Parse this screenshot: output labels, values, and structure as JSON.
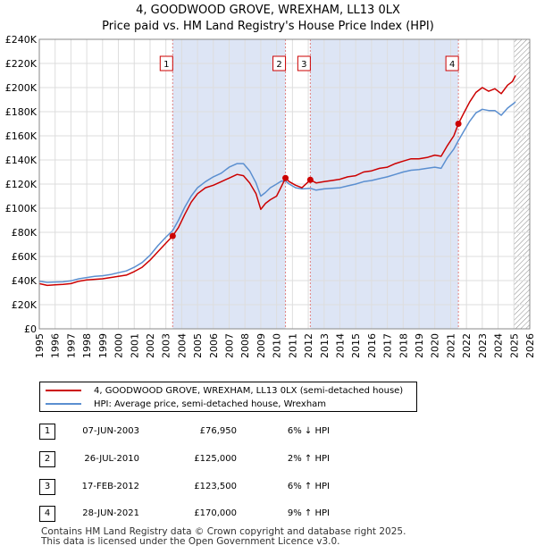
{
  "title": "4, GOODWOOD GROVE, WREXHAM, LL13 0LX",
  "subtitle": "Price paid vs. HM Land Registry's House Price Index (HPI)",
  "chart_data": {
    "type": "line",
    "title": "4, GOODWOOD GROVE, WREXHAM, LL13 0LX",
    "subtitle": "Price paid vs. HM Land Registry's House Price Index (HPI)",
    "xlim": [
      1995,
      2026
    ],
    "ylim": [
      0,
      240000
    ],
    "x_ticks": [
      1995,
      1996,
      1997,
      1998,
      1999,
      2000,
      2001,
      2002,
      2003,
      2004,
      2005,
      2006,
      2007,
      2008,
      2009,
      2010,
      2011,
      2012,
      2013,
      2014,
      2015,
      2016,
      2017,
      2018,
      2019,
      2020,
      2021,
      2022,
      2023,
      2024,
      2025,
      2026
    ],
    "y_ticks": [
      {
        "value": 0,
        "label": "£0"
      },
      {
        "value": 20000,
        "label": "£20K"
      },
      {
        "value": 40000,
        "label": "£40K"
      },
      {
        "value": 60000,
        "label": "£60K"
      },
      {
        "value": 80000,
        "label": "£80K"
      },
      {
        "value": 100000,
        "label": "£100K"
      },
      {
        "value": 120000,
        "label": "£120K"
      },
      {
        "value": 140000,
        "label": "£140K"
      },
      {
        "value": 160000,
        "label": "£160K"
      },
      {
        "value": 180000,
        "label": "£180K"
      },
      {
        "value": 200000,
        "label": "£200K"
      },
      {
        "value": 220000,
        "label": "£220K"
      },
      {
        "value": 240000,
        "label": "£240K"
      }
    ],
    "shaded_periods": [
      {
        "from": 2003.43,
        "to": 2010.56
      },
      {
        "from": 2012.13,
        "to": 2021.49
      }
    ],
    "future_hatch_from": 2025.0,
    "series": [
      {
        "name": "4, GOODWOOD GROVE, WREXHAM, LL13 0LX (semi-detached house)",
        "color": "#cc0000",
        "points": [
          [
            1995.0,
            37500
          ],
          [
            1995.5,
            36000
          ],
          [
            1996.0,
            36500
          ],
          [
            1996.5,
            36800
          ],
          [
            1997.0,
            37500
          ],
          [
            1997.5,
            39500
          ],
          [
            1998.0,
            40500
          ],
          [
            1998.5,
            41000
          ],
          [
            1999.0,
            41500
          ],
          [
            1999.5,
            42500
          ],
          [
            2000.0,
            43500
          ],
          [
            2000.5,
            44500
          ],
          [
            2001.0,
            47500
          ],
          [
            2001.5,
            51000
          ],
          [
            2002.0,
            57000
          ],
          [
            2002.5,
            64000
          ],
          [
            2003.0,
            71000
          ],
          [
            2003.43,
            76950
          ],
          [
            2003.8,
            84000
          ],
          [
            2004.2,
            95000
          ],
          [
            2004.6,
            105000
          ],
          [
            2005.0,
            112000
          ],
          [
            2005.5,
            117000
          ],
          [
            2006.0,
            119000
          ],
          [
            2006.5,
            122000
          ],
          [
            2007.0,
            125000
          ],
          [
            2007.5,
            128000
          ],
          [
            2007.9,
            127000
          ],
          [
            2008.3,
            121000
          ],
          [
            2008.7,
            112000
          ],
          [
            2009.0,
            99000
          ],
          [
            2009.3,
            104000
          ],
          [
            2009.6,
            107000
          ],
          [
            2010.0,
            110000
          ],
          [
            2010.3,
            118000
          ],
          [
            2010.56,
            125000
          ],
          [
            2010.8,
            122000
          ],
          [
            2011.2,
            119000
          ],
          [
            2011.6,
            117000
          ],
          [
            2012.13,
            123500
          ],
          [
            2012.5,
            121000
          ],
          [
            2013.0,
            122000
          ],
          [
            2013.5,
            123000
          ],
          [
            2014.0,
            124000
          ],
          [
            2014.5,
            126000
          ],
          [
            2015.0,
            127000
          ],
          [
            2015.5,
            130000
          ],
          [
            2016.0,
            131000
          ],
          [
            2016.5,
            133000
          ],
          [
            2017.0,
            134000
          ],
          [
            2017.5,
            137000
          ],
          [
            2018.0,
            139000
          ],
          [
            2018.5,
            141000
          ],
          [
            2019.0,
            141000
          ],
          [
            2019.5,
            142000
          ],
          [
            2020.0,
            144000
          ],
          [
            2020.4,
            143000
          ],
          [
            2020.8,
            152000
          ],
          [
            2021.2,
            160000
          ],
          [
            2021.49,
            170000
          ],
          [
            2021.8,
            178000
          ],
          [
            2022.2,
            188000
          ],
          [
            2022.6,
            196000
          ],
          [
            2023.0,
            200000
          ],
          [
            2023.4,
            197000
          ],
          [
            2023.8,
            199000
          ],
          [
            2024.2,
            195000
          ],
          [
            2024.6,
            202000
          ],
          [
            2024.9,
            205000
          ],
          [
            2025.1,
            210000
          ]
        ]
      },
      {
        "name": "HPI: Average price, semi-detached house, Wrexham",
        "color": "#5b8fd0",
        "points": [
          [
            1995.0,
            39500
          ],
          [
            1995.5,
            38500
          ],
          [
            1996.0,
            38800
          ],
          [
            1996.5,
            39000
          ],
          [
            1997.0,
            39800
          ],
          [
            1997.5,
            41500
          ],
          [
            1998.0,
            42500
          ],
          [
            1998.5,
            43500
          ],
          [
            1999.0,
            44000
          ],
          [
            1999.5,
            45000
          ],
          [
            2000.0,
            46500
          ],
          [
            2000.5,
            48000
          ],
          [
            2001.0,
            51000
          ],
          [
            2001.5,
            55000
          ],
          [
            2002.0,
            61000
          ],
          [
            2002.5,
            69000
          ],
          [
            2003.0,
            76000
          ],
          [
            2003.43,
            81500
          ],
          [
            2003.8,
            90000
          ],
          [
            2004.2,
            101000
          ],
          [
            2004.6,
            110000
          ],
          [
            2005.0,
            117000
          ],
          [
            2005.5,
            122000
          ],
          [
            2006.0,
            126000
          ],
          [
            2006.5,
            129000
          ],
          [
            2007.0,
            134000
          ],
          [
            2007.5,
            137000
          ],
          [
            2007.9,
            137000
          ],
          [
            2008.3,
            131000
          ],
          [
            2008.7,
            121000
          ],
          [
            2009.0,
            110000
          ],
          [
            2009.3,
            113000
          ],
          [
            2009.6,
            117000
          ],
          [
            2010.0,
            120000
          ],
          [
            2010.3,
            122500
          ],
          [
            2010.56,
            122500
          ],
          [
            2010.8,
            120000
          ],
          [
            2011.2,
            117000
          ],
          [
            2011.6,
            116000
          ],
          [
            2012.13,
            116500
          ],
          [
            2012.5,
            115000
          ],
          [
            2013.0,
            116000
          ],
          [
            2013.5,
            116500
          ],
          [
            2014.0,
            117000
          ],
          [
            2014.5,
            118500
          ],
          [
            2015.0,
            120000
          ],
          [
            2015.5,
            122000
          ],
          [
            2016.0,
            123000
          ],
          [
            2016.5,
            124500
          ],
          [
            2017.0,
            126000
          ],
          [
            2017.5,
            128000
          ],
          [
            2018.0,
            130000
          ],
          [
            2018.5,
            131500
          ],
          [
            2019.0,
            132000
          ],
          [
            2019.5,
            133000
          ],
          [
            2020.0,
            134000
          ],
          [
            2020.4,
            133000
          ],
          [
            2020.8,
            142000
          ],
          [
            2021.2,
            149000
          ],
          [
            2021.49,
            156000
          ],
          [
            2021.8,
            163000
          ],
          [
            2022.2,
            172000
          ],
          [
            2022.6,
            179000
          ],
          [
            2023.0,
            182000
          ],
          [
            2023.4,
            181000
          ],
          [
            2023.8,
            181000
          ],
          [
            2024.2,
            177000
          ],
          [
            2024.6,
            183000
          ],
          [
            2024.9,
            186000
          ],
          [
            2025.1,
            188000
          ]
        ]
      }
    ],
    "transactions": [
      {
        "num": "1",
        "x": 2003.43,
        "value": 76950
      },
      {
        "num": "2",
        "x": 2010.56,
        "value": 125000
      },
      {
        "num": "3",
        "x": 2012.13,
        "value": 123500
      },
      {
        "num": "4",
        "x": 2021.49,
        "value": 170000
      }
    ]
  },
  "legend": {
    "property_label": "4, GOODWOOD GROVE, WREXHAM, LL13 0LX (semi-detached house)",
    "hpi_label": "HPI: Average price, semi-detached house, Wrexham",
    "property_color": "#cc0000",
    "hpi_color": "#5b8fd0"
  },
  "transactions_table": [
    {
      "num": "1",
      "date": "07-JUN-2003",
      "price": "£76,950",
      "hpi": "6% ↓ HPI"
    },
    {
      "num": "2",
      "date": "26-JUL-2010",
      "price": "£125,000",
      "hpi": "2% ↑ HPI"
    },
    {
      "num": "3",
      "date": "17-FEB-2012",
      "price": "£123,500",
      "hpi": "6% ↑ HPI"
    },
    {
      "num": "4",
      "date": "28-JUN-2021",
      "price": "£170,000",
      "hpi": "9% ↑ HPI"
    }
  ],
  "footer": {
    "line1": "Contains HM Land Registry data © Crown copyright and database right 2025.",
    "line2": "This data is licensed under the Open Government Licence v3.0."
  }
}
